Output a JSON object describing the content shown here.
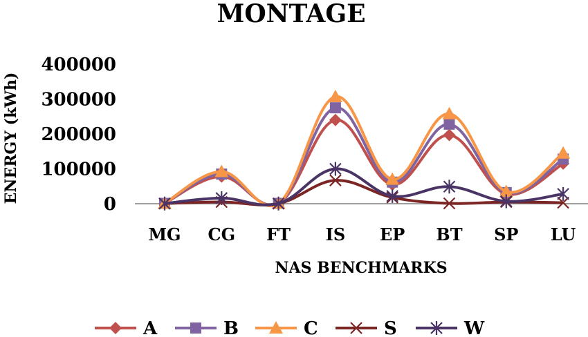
{
  "chart_data": {
    "type": "line",
    "title": "MONTAGE",
    "xlabel": "NAS BENCHMARKS",
    "ylabel": "ENERGY (kWh)",
    "categories": [
      "MG",
      "CG",
      "FT",
      "IS",
      "EP",
      "BT",
      "SP",
      "LU"
    ],
    "ylim": [
      0,
      400000
    ],
    "yticks": [
      0,
      100000,
      200000,
      300000,
      400000
    ],
    "grid": false,
    "legend_position": "bottom",
    "smooth": true,
    "series": [
      {
        "name": "A",
        "color": "#c0504d",
        "marker": "diamond",
        "values": [
          1000,
          78000,
          1000,
          240000,
          55000,
          197000,
          28000,
          115000
        ]
      },
      {
        "name": "B",
        "color": "#8064a2",
        "marker": "square",
        "values": [
          1000,
          85000,
          1000,
          275000,
          62000,
          228000,
          32000,
          128000
        ]
      },
      {
        "name": "C",
        "color": "#f79646",
        "marker": "triangle",
        "values": [
          1000,
          92000,
          1000,
          307000,
          70000,
          258000,
          35000,
          145000
        ]
      },
      {
        "name": "S",
        "color": "#7b2525",
        "marker": "x",
        "values": [
          500,
          5000,
          500,
          67000,
          18000,
          1000,
          5000,
          3000
        ]
      },
      {
        "name": "W",
        "color": "#4a3466",
        "marker": "star",
        "values": [
          500,
          16000,
          500,
          100000,
          22000,
          49000,
          7000,
          28000
        ]
      }
    ]
  }
}
